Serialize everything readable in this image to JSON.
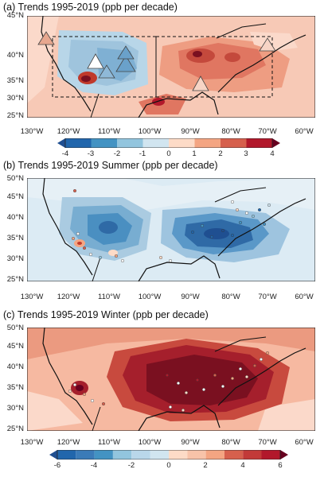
{
  "panels": [
    {
      "title": "(a) Trends 1995-2019 (ppb per decade)",
      "lat_labels": [
        "45°N",
        "40°N",
        "35°N",
        "30°N",
        "25°N"
      ],
      "lon_labels": [
        "130°W",
        "120°W",
        "110°W",
        "100°W",
        "90°W",
        "80°W",
        "70°W",
        "60°W"
      ],
      "features": [
        "gridded trend field",
        "two dashed regional boxes",
        "triangle station markers"
      ]
    },
    {
      "title": "(b) Trends 1995-2019 Summer (ppb per decade)",
      "lat_labels": [
        "50°N",
        "45°N",
        "40°N",
        "35°N",
        "30°N",
        "25°N"
      ],
      "lon_labels": [
        "130°W",
        "120°W",
        "110°W",
        "100°W",
        "90°W",
        "80°W",
        "70°W",
        "60°W"
      ],
      "features": [
        "gridded trend field",
        "station dots"
      ]
    },
    {
      "title": "(c) Trends 1995-2019 Winter (ppb per decade)",
      "lat_labels": [
        "50°N",
        "45°N",
        "40°N",
        "35°N",
        "30°N",
        "25°N"
      ],
      "lon_labels": [
        "130°W",
        "120°W",
        "110°W",
        "100°W",
        "90°W",
        "80°W",
        "70°W",
        "60°W"
      ],
      "features": [
        "gridded trend field",
        "station dots"
      ]
    }
  ],
  "colorbars": [
    {
      "ticks": [
        "-4",
        "-3",
        "-2",
        "-1",
        "0",
        "1",
        "2",
        "3",
        "4"
      ],
      "range": [
        -4,
        4
      ]
    },
    {
      "ticks": [
        "-6",
        "-4",
        "-2",
        "0",
        "2",
        "4",
        "6"
      ],
      "range": [
        -6,
        6
      ]
    }
  ],
  "colors": {
    "strong_blue": "#2166ac",
    "mid_blue": "#4393c3",
    "light_blue": "#92c5de",
    "pale_blue": "#d1e5f0",
    "pale_red": "#fddbc7",
    "light_red": "#f4a582",
    "mid_red": "#d6604d",
    "strong_red": "#b2182b",
    "darkest_red": "#67001f"
  }
}
